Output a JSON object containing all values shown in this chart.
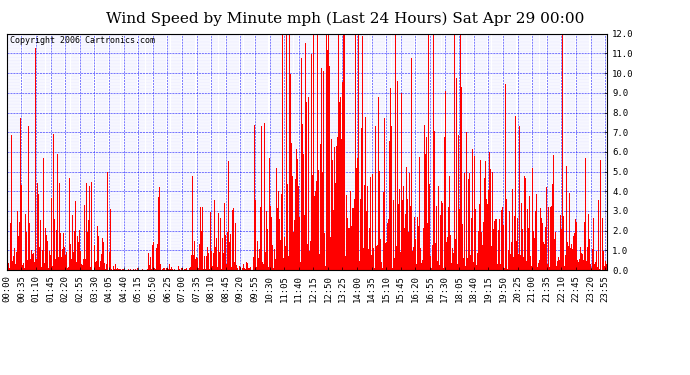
{
  "title": "Wind Speed by Minute mph (Last 24 Hours) Sat Apr 29 00:00",
  "copyright_text": "Copyright 2006 Cartronics.com",
  "bar_color": "#FF0000",
  "background_color": "#FFFFFF",
  "grid_color": "#0000FF",
  "ylim": [
    0,
    12.0
  ],
  "ytick_values": [
    0.0,
    1.0,
    2.0,
    3.0,
    4.0,
    5.0,
    6.0,
    7.0,
    8.0,
    9.0,
    10.0,
    11.0,
    12.0
  ],
  "title_fontsize": 11,
  "axis_fontsize": 6.5,
  "copyright_fontsize": 6.0,
  "num_minutes": 1440,
  "tick_interval": 35,
  "seed": 42,
  "figsize": [
    6.9,
    3.75
  ],
  "dpi": 100
}
